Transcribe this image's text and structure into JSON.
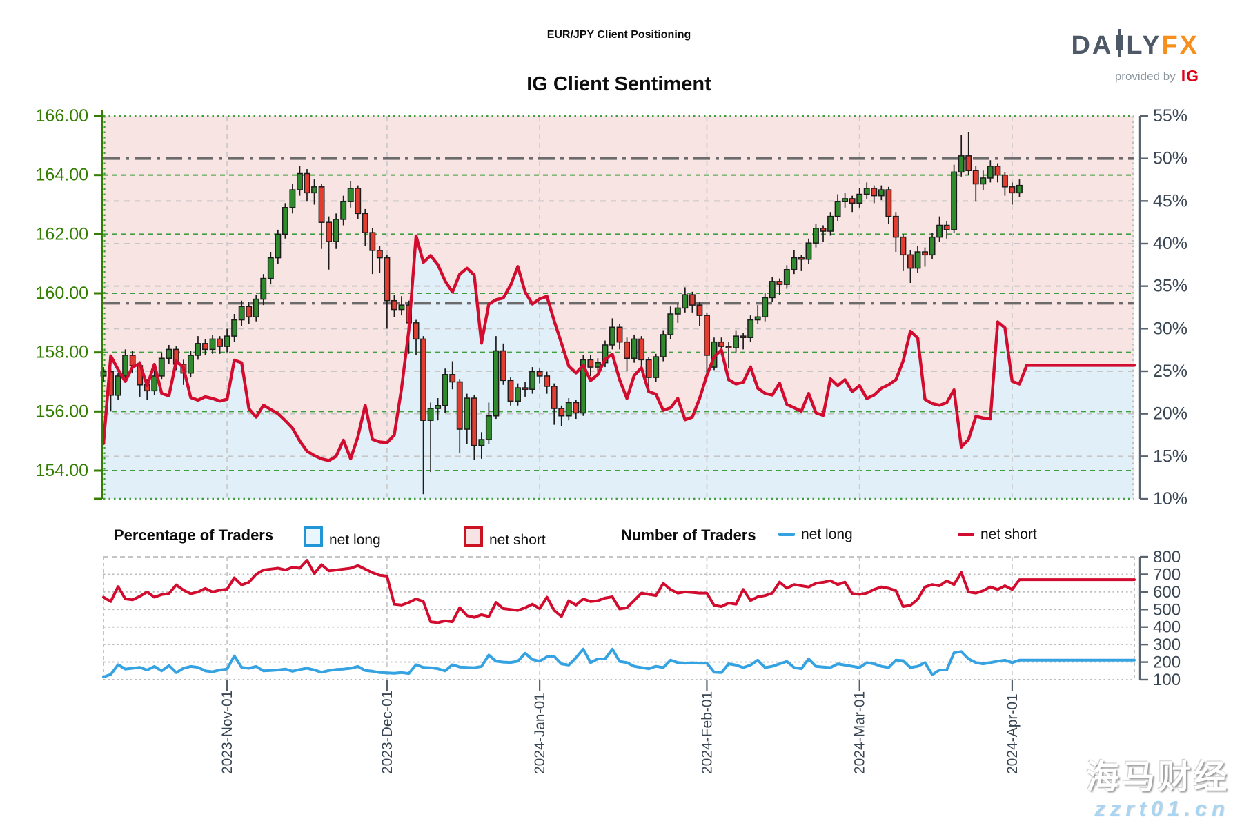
{
  "header": {
    "title": "EUR/JPY Client Positioning",
    "subtitle": "IG Client Sentiment",
    "logo": {
      "brand_left": "DA",
      "brand_right": "LY",
      "brand_fx": "FX",
      "provided_by": "provided by",
      "ig": "IG"
    }
  },
  "legend": {
    "pct_header": "Percentage of Traders",
    "num_header": "Number of Traders",
    "net_long": "net long",
    "net_short": "net short"
  },
  "watermark": {
    "line1": "海马财经",
    "line2": "zzrt01.cn"
  },
  "colors": {
    "pink_area": "#f8e4e2",
    "blue_area": "#e0eff8",
    "short_line": "#d10c2f",
    "long_line": "#35a2e2",
    "candle_up": "#2f8b2e",
    "candle_down": "#e23d30",
    "candle_outline": "#1c1c1c",
    "price_axis": "#337d00",
    "grid_green": "#3f9e3f",
    "grid_gray": "#c6c6c6",
    "ref_line": "#6b6b6b",
    "dark_label": "#3a4653",
    "logo_orange": "#f78f1e",
    "logo_gray": "#4d5966",
    "ig_red": "#e10019"
  },
  "chart_data": [
    {
      "type": "candlestick+line",
      "title": "IG Client Sentiment",
      "legend_position": "below",
      "grid": true,
      "price_axis": {
        "side": "left",
        "min": 154,
        "max": 166,
        "ticks": [
          "166.00",
          "164.00",
          "162.00",
          "160.00",
          "158.00",
          "156.00",
          "154.00"
        ],
        "tick_values": [
          166,
          164,
          162,
          160,
          158,
          156,
          154
        ]
      },
      "pct_axis": {
        "side": "right",
        "min": 10,
        "max": 55,
        "ticks": [
          "55%",
          "50%",
          "45%",
          "40%",
          "35%",
          "30%",
          "25%",
          "20%",
          "15%",
          "10%"
        ],
        "tick_values": [
          55,
          50,
          45,
          40,
          35,
          30,
          25,
          20,
          15,
          10
        ]
      },
      "reference_lines_pct": [
        50,
        33
      ],
      "x_ticks": [
        {
          "label": "2023-Nov-01",
          "day": 17
        },
        {
          "label": "2023-Dec-01",
          "day": 39
        },
        {
          "label": "2024-Jan-01",
          "day": 60
        },
        {
          "label": "2024-Feb-01",
          "day": 83
        },
        {
          "label": "2024-Mar-01",
          "day": 104
        },
        {
          "label": "2024-Apr-01",
          "day": 125
        }
      ],
      "candles_ohlc": [
        [
          157.2,
          157.5,
          157.0,
          157.35
        ],
        [
          157.35,
          157.45,
          156.0,
          156.55
        ],
        [
          156.55,
          157.3,
          156.4,
          157.2
        ],
        [
          157.2,
          158.1,
          157.0,
          157.9
        ],
        [
          157.9,
          158.05,
          157.3,
          157.55
        ],
        [
          157.55,
          157.7,
          156.5,
          156.9
        ],
        [
          156.9,
          157.1,
          156.4,
          156.7
        ],
        [
          156.7,
          157.4,
          156.55,
          157.2
        ],
        [
          157.2,
          158.0,
          157.1,
          157.8
        ],
        [
          157.8,
          158.25,
          157.6,
          158.1
        ],
        [
          158.1,
          158.2,
          157.4,
          157.6
        ],
        [
          157.6,
          157.75,
          156.9,
          157.3
        ],
        [
          157.3,
          158.05,
          157.15,
          157.9
        ],
        [
          157.9,
          158.55,
          157.75,
          158.3
        ],
        [
          158.3,
          158.45,
          157.9,
          158.1
        ],
        [
          158.1,
          158.6,
          157.95,
          158.45
        ],
        [
          158.45,
          158.55,
          157.95,
          158.2
        ],
        [
          158.2,
          158.8,
          158.0,
          158.55
        ],
        [
          158.55,
          159.3,
          158.35,
          159.1
        ],
        [
          159.1,
          159.75,
          158.9,
          159.55
        ],
        [
          159.55,
          159.7,
          158.95,
          159.2
        ],
        [
          159.2,
          159.95,
          159.05,
          159.8
        ],
        [
          159.8,
          160.65,
          159.6,
          160.5
        ],
        [
          160.5,
          161.4,
          160.3,
          161.2
        ],
        [
          161.2,
          162.15,
          161.0,
          162.0
        ],
        [
          162.0,
          163.05,
          161.85,
          162.9
        ],
        [
          162.9,
          163.7,
          162.7,
          163.5
        ],
        [
          163.5,
          164.3,
          163.3,
          164.05
        ],
        [
          164.05,
          164.2,
          163.1,
          163.4
        ],
        [
          163.4,
          163.85,
          163.0,
          163.6
        ],
        [
          163.6,
          163.7,
          161.5,
          162.4
        ],
        [
          162.4,
          162.6,
          160.8,
          161.75
        ],
        [
          161.75,
          162.7,
          161.5,
          162.5
        ],
        [
          162.5,
          163.3,
          162.3,
          163.1
        ],
        [
          163.1,
          163.8,
          162.9,
          163.55
        ],
        [
          163.55,
          163.65,
          162.5,
          162.7
        ],
        [
          162.7,
          162.85,
          161.6,
          162.05
        ],
        [
          162.05,
          162.2,
          160.65,
          161.45
        ],
        [
          161.45,
          161.6,
          160.7,
          161.2
        ],
        [
          161.2,
          161.3,
          158.8,
          159.75
        ],
        [
          159.75,
          159.95,
          159.2,
          159.45
        ],
        [
          159.45,
          159.9,
          159.25,
          159.6
        ],
        [
          159.6,
          159.75,
          157.95,
          159.0
        ],
        [
          159.0,
          159.1,
          157.9,
          158.45
        ],
        [
          158.45,
          158.55,
          153.2,
          155.7
        ],
        [
          155.7,
          156.3,
          153.95,
          156.1
        ],
        [
          156.1,
          156.45,
          155.7,
          156.2
        ],
        [
          156.2,
          157.45,
          155.95,
          157.25
        ],
        [
          157.25,
          157.7,
          156.75,
          157.0
        ],
        [
          157.0,
          157.1,
          154.6,
          155.4
        ],
        [
          155.4,
          156.6,
          154.9,
          156.45
        ],
        [
          156.45,
          156.55,
          154.35,
          154.85
        ],
        [
          154.85,
          155.3,
          154.4,
          155.05
        ],
        [
          155.05,
          156.3,
          154.9,
          155.85
        ],
        [
          155.85,
          158.55,
          155.75,
          158.05
        ],
        [
          158.05,
          158.3,
          156.9,
          157.05
        ],
        [
          157.05,
          157.15,
          156.2,
          156.35
        ],
        [
          156.35,
          156.95,
          156.2,
          156.8
        ],
        [
          156.8,
          157.0,
          156.5,
          156.75
        ],
        [
          156.75,
          157.5,
          156.6,
          157.35
        ],
        [
          157.35,
          157.45,
          156.95,
          157.2
        ],
        [
          157.2,
          157.35,
          156.6,
          156.85
        ],
        [
          156.85,
          156.95,
          155.55,
          156.1
        ],
        [
          156.1,
          156.2,
          155.5,
          155.85
        ],
        [
          155.85,
          156.45,
          155.7,
          156.3
        ],
        [
          156.3,
          156.4,
          155.75,
          155.95
        ],
        [
          155.95,
          157.9,
          155.85,
          157.75
        ],
        [
          157.75,
          157.9,
          157.2,
          157.5
        ],
        [
          157.5,
          157.8,
          157.3,
          157.65
        ],
        [
          157.65,
          158.4,
          157.5,
          158.25
        ],
        [
          158.25,
          159.15,
          158.1,
          158.85
        ],
        [
          158.85,
          158.95,
          158.1,
          158.35
        ],
        [
          158.35,
          158.5,
          157.35,
          157.8
        ],
        [
          157.8,
          158.6,
          157.65,
          158.45
        ],
        [
          158.45,
          158.55,
          157.55,
          157.75
        ],
        [
          157.75,
          157.85,
          156.85,
          157.15
        ],
        [
          157.15,
          157.95,
          157.0,
          157.85
        ],
        [
          157.85,
          158.75,
          157.7,
          158.6
        ],
        [
          158.6,
          159.55,
          158.45,
          159.3
        ],
        [
          159.3,
          159.65,
          159.0,
          159.5
        ],
        [
          159.5,
          160.2,
          159.35,
          159.95
        ],
        [
          159.95,
          160.05,
          159.35,
          159.6
        ],
        [
          159.6,
          159.7,
          158.9,
          159.25
        ],
        [
          159.25,
          159.35,
          157.3,
          157.9
        ],
        [
          157.5,
          158.5,
          157.4,
          158.35
        ],
        [
          158.35,
          158.5,
          157.9,
          158.2
        ],
        [
          158.2,
          158.35,
          157.45,
          158.15
        ],
        [
          158.15,
          158.75,
          158.0,
          158.55
        ],
        [
          158.55,
          158.65,
          158.1,
          158.5
        ],
        [
          158.5,
          159.25,
          158.35,
          159.1
        ],
        [
          159.1,
          159.6,
          158.95,
          159.2
        ],
        [
          159.2,
          160.0,
          159.05,
          159.85
        ],
        [
          159.85,
          160.55,
          159.7,
          160.4
        ],
        [
          160.4,
          160.5,
          159.95,
          160.3
        ],
        [
          160.3,
          160.95,
          160.15,
          160.8
        ],
        [
          160.8,
          161.45,
          160.65,
          161.2
        ],
        [
          161.2,
          161.3,
          160.75,
          161.15
        ],
        [
          161.15,
          161.85,
          161.0,
          161.7
        ],
        [
          161.7,
          162.35,
          161.55,
          162.2
        ],
        [
          162.2,
          162.3,
          161.75,
          162.1
        ],
        [
          162.1,
          162.75,
          161.95,
          162.6
        ],
        [
          162.6,
          163.35,
          162.45,
          163.1
        ],
        [
          163.1,
          163.4,
          162.9,
          163.2
        ],
        [
          163.2,
          163.3,
          162.75,
          163.05
        ],
        [
          163.05,
          163.55,
          162.9,
          163.35
        ],
        [
          163.35,
          163.75,
          163.2,
          163.55
        ],
        [
          163.55,
          163.65,
          163.05,
          163.3
        ],
        [
          163.3,
          163.65,
          163.15,
          163.5
        ],
        [
          163.5,
          163.6,
          162.35,
          162.6
        ],
        [
          162.6,
          162.75,
          161.4,
          161.9
        ],
        [
          161.9,
          162.0,
          160.75,
          161.3
        ],
        [
          161.3,
          161.45,
          160.35,
          160.85
        ],
        [
          160.85,
          161.6,
          160.7,
          161.4
        ],
        [
          161.4,
          161.55,
          160.9,
          161.3
        ],
        [
          161.3,
          162.05,
          161.15,
          161.9
        ],
        [
          161.9,
          162.6,
          161.75,
          162.3
        ],
        [
          162.3,
          162.45,
          161.85,
          162.15
        ],
        [
          162.15,
          164.35,
          162.05,
          164.1
        ],
        [
          164.1,
          165.35,
          163.95,
          164.65
        ],
        [
          164.65,
          165.45,
          164.0,
          164.15
        ],
        [
          164.15,
          164.3,
          163.1,
          163.7
        ],
        [
          163.7,
          164.15,
          163.5,
          163.9
        ],
        [
          163.9,
          164.5,
          163.75,
          164.3
        ],
        [
          164.3,
          164.4,
          163.75,
          164.0
        ],
        [
          164.0,
          164.1,
          163.3,
          163.6
        ],
        [
          163.6,
          163.75,
          163.0,
          163.4
        ],
        [
          163.4,
          163.85,
          163.25,
          163.65
        ]
      ],
      "net_short_pct": [
        16.5,
        26.8,
        25.2,
        23.8,
        25.5,
        25.9,
        23.3,
        25.8,
        22.4,
        22.1,
        26.2,
        25.4,
        21.9,
        21.6,
        22.0,
        21.8,
        21.5,
        21.7,
        26.3,
        26.0,
        20.6,
        19.6,
        21.0,
        20.5,
        20.0,
        19.2,
        18.3,
        16.8,
        15.6,
        15.1,
        14.7,
        14.5,
        15.0,
        16.9,
        14.7,
        17.3,
        21.0,
        17.0,
        16.7,
        16.6,
        17.5,
        23.0,
        29.8,
        40.9,
        37.8,
        38.6,
        37.5,
        35.6,
        34.3,
        36.4,
        37.1,
        36.3,
        28.3,
        32.9,
        33.4,
        33.6,
        35.1,
        37.3,
        34.3,
        32.9,
        33.5,
        33.8,
        30.9,
        28.3,
        25.6,
        24.8,
        25.7,
        23.9,
        24.6,
        26.4,
        27.0,
        24.0,
        21.8,
        24.5,
        25.4,
        22.6,
        22.3,
        20.4,
        20.7,
        21.8,
        19.3,
        19.6,
        21.8,
        24.5,
        26.7,
        27.5,
        24.0,
        23.5,
        23.7,
        25.5,
        23.0,
        22.4,
        22.2,
        23.6,
        21.1,
        20.7,
        20.3,
        22.4,
        20.1,
        19.8,
        24.1,
        23.3,
        24.0,
        22.6,
        23.3,
        21.8,
        22.2,
        23.0,
        23.4,
        24.0,
        26.2,
        29.7,
        28.9,
        21.7,
        21.2,
        21.0,
        21.3,
        22.8,
        16.1,
        17.0,
        19.7,
        19.5,
        19.4,
        30.8,
        30.1,
        23.8,
        23.5,
        25.7
      ]
    },
    {
      "type": "line",
      "series_note": "Number of Traders",
      "count_axis": {
        "side": "right",
        "min": 100,
        "max": 800,
        "ticks": [
          "800",
          "700",
          "600",
          "500",
          "400",
          "300",
          "200",
          "100"
        ],
        "tick_values": [
          800,
          700,
          600,
          500,
          400,
          300,
          200,
          100
        ]
      },
      "net_long_traders": [
        115,
        130,
        185,
        160,
        165,
        170,
        155,
        175,
        150,
        180,
        140,
        165,
        175,
        170,
        150,
        145,
        155,
        160,
        235,
        170,
        165,
        175,
        150,
        152,
        155,
        160,
        148,
        158,
        165,
        155,
        142,
        152,
        158,
        160,
        165,
        175,
        152,
        148,
        140,
        138,
        136,
        140,
        135,
        185,
        170,
        168,
        162,
        150,
        185,
        172,
        170,
        168,
        175,
        240,
        205,
        200,
        198,
        205,
        250,
        215,
        205,
        230,
        232,
        190,
        183,
        225,
        274,
        197,
        218,
        218,
        274,
        204,
        197,
        176,
        169,
        162,
        176,
        169,
        211,
        197,
        194,
        196,
        194,
        194,
        142,
        140,
        190,
        183,
        169,
        183,
        211,
        169,
        176,
        190,
        204,
        169,
        162,
        218,
        176,
        172,
        169,
        190,
        183,
        176,
        169,
        197,
        190,
        176,
        169,
        211,
        208,
        169,
        176,
        197,
        128,
        155,
        155,
        253,
        260,
        218,
        197,
        190,
        197,
        205,
        211,
        197,
        211
      ],
      "net_short_traders": [
        570,
        545,
        630,
        560,
        555,
        575,
        600,
        570,
        585,
        590,
        640,
        610,
        590,
        600,
        620,
        600,
        610,
        615,
        680,
        640,
        655,
        700,
        725,
        730,
        735,
        725,
        740,
        735,
        780,
        705,
        755,
        720,
        725,
        730,
        735,
        750,
        730,
        710,
        695,
        690,
        530,
        525,
        540,
        560,
        545,
        430,
        425,
        435,
        430,
        510,
        465,
        455,
        470,
        460,
        540,
        505,
        500,
        495,
        510,
        530,
        505,
        570,
        495,
        460,
        550,
        525,
        560,
        545,
        550,
        565,
        572,
        503,
        510,
        551,
        593,
        586,
        579,
        649,
        614,
        593,
        600,
        597,
        593,
        593,
        523,
        517,
        537,
        530,
        614,
        551,
        572,
        579,
        593,
        656,
        621,
        642,
        635,
        628,
        649,
        655,
        663,
        642,
        656,
        590,
        586,
        593,
        614,
        628,
        621,
        607,
        517,
        523,
        558,
        628,
        642,
        635,
        663,
        642,
        711,
        600,
        593,
        607,
        628,
        614,
        635,
        614,
        670
      ]
    }
  ]
}
